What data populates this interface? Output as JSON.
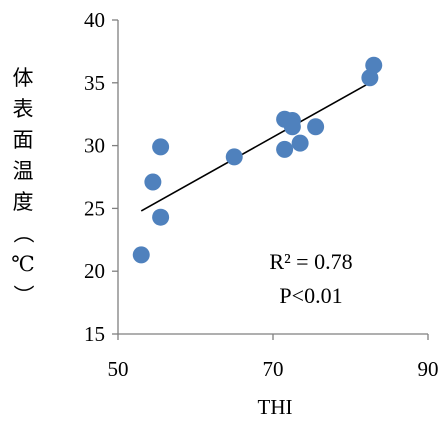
{
  "chart_data": {
    "type": "scatter",
    "title": "",
    "xlabel": "THI",
    "ylabel": "体表面温度（℃）",
    "xlim": [
      50,
      90
    ],
    "ylim": [
      15,
      40
    ],
    "x_ticks": [
      50,
      70,
      90
    ],
    "y_ticks": [
      15,
      20,
      25,
      30,
      35,
      40
    ],
    "grid": false,
    "legend": "none",
    "marker_color": "#4F81BD",
    "trendline_color": "#000000",
    "series": [
      {
        "points": [
          {
            "x": 53.0,
            "y": 21.3
          },
          {
            "x": 54.5,
            "y": 27.1
          },
          {
            "x": 55.5,
            "y": 24.3
          },
          {
            "x": 55.5,
            "y": 29.9
          },
          {
            "x": 65.0,
            "y": 29.1
          },
          {
            "x": 71.5,
            "y": 32.1
          },
          {
            "x": 71.5,
            "y": 29.7
          },
          {
            "x": 72.5,
            "y": 32.0
          },
          {
            "x": 72.5,
            "y": 31.5
          },
          {
            "x": 73.5,
            "y": 30.2
          },
          {
            "x": 75.5,
            "y": 31.5
          },
          {
            "x": 82.5,
            "y": 35.4
          },
          {
            "x": 83.0,
            "y": 36.4
          }
        ]
      }
    ],
    "trendline": {
      "x": [
        53,
        82.5
      ],
      "y": [
        24.8,
        35.0
      ]
    },
    "annotations": [
      "R² = 0.78",
      "P<0.01"
    ]
  }
}
